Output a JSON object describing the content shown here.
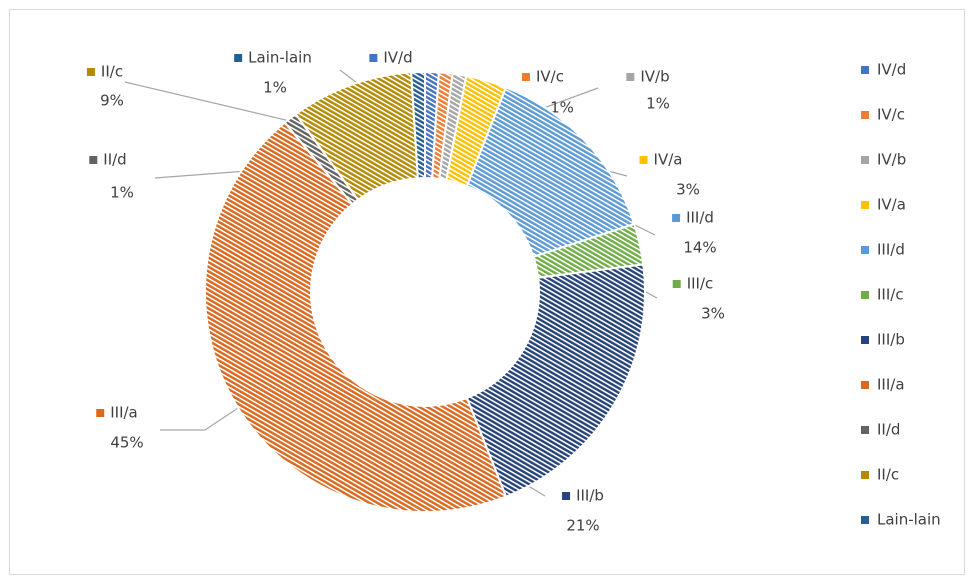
{
  "chart_data": {
    "type": "doughnut",
    "categories": [
      "IV/d",
      "IV/c",
      "IV/b",
      "IV/a",
      "III/d",
      "III/c",
      "III/b",
      "III/a",
      "II/d",
      "II/c",
      "Lain-lain"
    ],
    "values": [
      1,
      1,
      1,
      3,
      14,
      3,
      21,
      45,
      1,
      9,
      1
    ],
    "value_labels": [
      "1%",
      "1%",
      "1%",
      "3%",
      "14%",
      "3%",
      "21%",
      "45%",
      "1%",
      "9%",
      "1%"
    ],
    "colors": [
      "#4472c4",
      "#ed7d31",
      "#a5a5a5",
      "#ffc000",
      "#5b9bd5",
      "#70ad47",
      "#264478",
      "#d9691f",
      "#636363",
      "#b38a00",
      "#255e91"
    ],
    "legend": "right"
  }
}
